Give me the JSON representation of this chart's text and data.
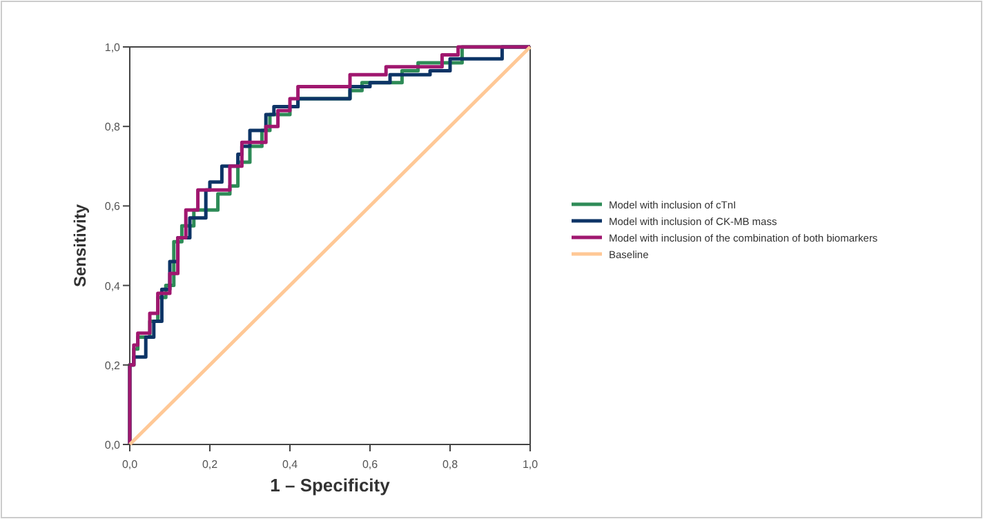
{
  "chart_data": {
    "type": "step",
    "xlabel": "1 – Specificity",
    "ylabel": "Sensitivity",
    "xlim": [
      0,
      1
    ],
    "ylim": [
      0,
      1
    ],
    "xticks": [
      {
        "value": 0,
        "label": "0,0"
      },
      {
        "value": 0.2,
        "label": "0,2"
      },
      {
        "value": 0.4,
        "label": "0,4"
      },
      {
        "value": 0.6,
        "label": "0,6"
      },
      {
        "value": 0.8,
        "label": "0,8"
      },
      {
        "value": 1,
        "label": "1,0"
      }
    ],
    "yticks": [
      {
        "value": 0,
        "label": "0,0"
      },
      {
        "value": 0.2,
        "label": "0,2"
      },
      {
        "value": 0.4,
        "label": "0,4"
      },
      {
        "value": 0.6,
        "label": "0,6"
      },
      {
        "value": 0.8,
        "label": "0,8"
      },
      {
        "value": 1,
        "label": "1,0"
      }
    ],
    "grid": false,
    "legend": "right",
    "series": [
      {
        "name": "Model with inclusion of cTnI",
        "color": "#2e8b57",
        "x": [
          0,
          0.01,
          0.02,
          0.05,
          0.07,
          0.09,
          0.11,
          0.13,
          0.16,
          0.22,
          0.25,
          0.27,
          0.3,
          0.33,
          0.35,
          0.4,
          0.42,
          0.55,
          0.58,
          0.68,
          0.72,
          0.83,
          1
        ],
        "values": [
          0,
          0.2,
          0.24,
          0.27,
          0.31,
          0.37,
          0.4,
          0.51,
          0.55,
          0.59,
          0.63,
          0.65,
          0.71,
          0.75,
          0.79,
          0.83,
          0.85,
          0.87,
          0.89,
          0.91,
          0.94,
          0.96,
          1
        ]
      },
      {
        "name": "Model with inclusion of CK-MB mass",
        "color": "#0d3466",
        "x": [
          0,
          0.01,
          0.04,
          0.06,
          0.08,
          0.1,
          0.12,
          0.15,
          0.19,
          0.2,
          0.23,
          0.27,
          0.28,
          0.3,
          0.34,
          0.36,
          0.42,
          0.55,
          0.6,
          0.65,
          0.75,
          0.8,
          0.93,
          1
        ],
        "values": [
          0,
          0.2,
          0.22,
          0.27,
          0.31,
          0.39,
          0.46,
          0.52,
          0.57,
          0.64,
          0.66,
          0.7,
          0.73,
          0.75,
          0.79,
          0.83,
          0.85,
          0.87,
          0.9,
          0.91,
          0.93,
          0.94,
          0.97,
          1
        ]
      },
      {
        "name": "Model with inclusion  of the combination of both biomarkers",
        "color": "#a0176f",
        "x": [
          0,
          0.01,
          0.02,
          0.05,
          0.07,
          0.1,
          0.12,
          0.14,
          0.17,
          0.25,
          0.28,
          0.34,
          0.37,
          0.4,
          0.42,
          0.55,
          0.64,
          0.78,
          0.82,
          1
        ],
        "values": [
          0,
          0.2,
          0.25,
          0.28,
          0.33,
          0.38,
          0.43,
          0.52,
          0.59,
          0.64,
          0.7,
          0.76,
          0.8,
          0.84,
          0.87,
          0.9,
          0.93,
          0.95,
          0.98,
          1
        ]
      },
      {
        "name": "Baseline",
        "type": "line",
        "color": "#ffc896",
        "x": [
          0,
          1
        ],
        "values": [
          0,
          1
        ]
      }
    ]
  }
}
